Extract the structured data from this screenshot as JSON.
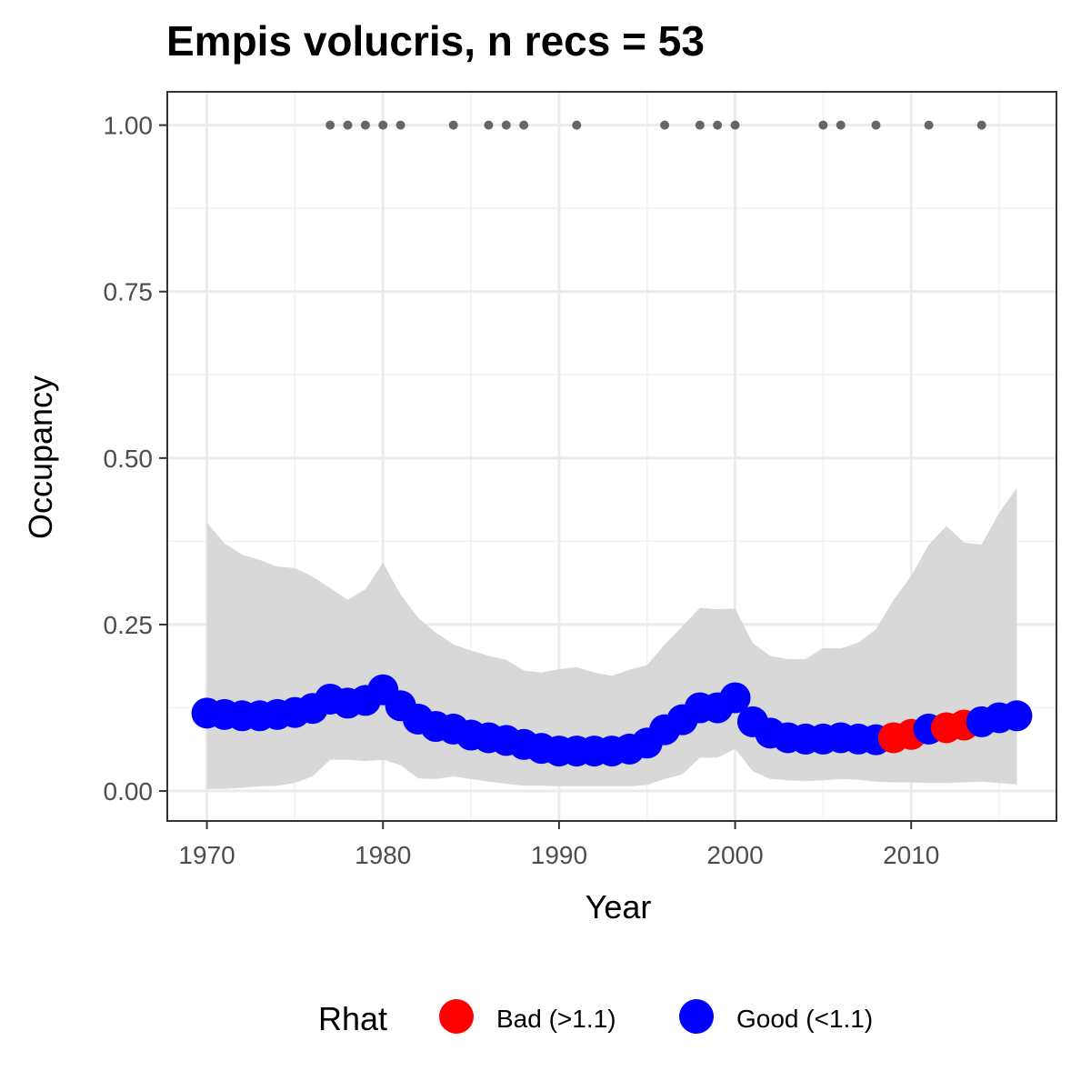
{
  "chart_data": {
    "type": "line",
    "title": "Empis volucris, n recs = 53",
    "xlabel": "Year",
    "ylabel": "Occupancy",
    "xlim": [
      1967.75,
      2018.25
    ],
    "ylim": [
      -0.045,
      1.05
    ],
    "x_ticks": [
      1970,
      1980,
      1990,
      2000,
      2010
    ],
    "y_ticks": [
      0,
      0.25,
      0.5,
      0.75,
      1.0
    ],
    "y_tick_labels": [
      "0.00",
      "0.25",
      "0.50",
      "0.75",
      "1.00"
    ],
    "grid": true,
    "years": [
      1970,
      1971,
      1972,
      1973,
      1974,
      1975,
      1976,
      1977,
      1978,
      1979,
      1980,
      1981,
      1982,
      1983,
      1984,
      1985,
      1986,
      1987,
      1988,
      1989,
      1990,
      1991,
      1992,
      1993,
      1994,
      1995,
      1996,
      1997,
      1998,
      1999,
      2000,
      2001,
      2002,
      2003,
      2004,
      2005,
      2006,
      2007,
      2008,
      2009,
      2010,
      2011,
      2012,
      2013,
      2014,
      2015,
      2016
    ],
    "occupancy": [
      0.117,
      0.115,
      0.113,
      0.113,
      0.115,
      0.118,
      0.124,
      0.138,
      0.132,
      0.136,
      0.152,
      0.128,
      0.108,
      0.097,
      0.093,
      0.084,
      0.08,
      0.076,
      0.07,
      0.064,
      0.06,
      0.06,
      0.06,
      0.06,
      0.063,
      0.072,
      0.092,
      0.107,
      0.125,
      0.125,
      0.14,
      0.104,
      0.087,
      0.08,
      0.078,
      0.078,
      0.08,
      0.078,
      0.077,
      0.08,
      0.085,
      0.093,
      0.095,
      0.099,
      0.104,
      0.11,
      0.113
    ],
    "lower": [
      0.003,
      0.003,
      0.005,
      0.007,
      0.008,
      0.012,
      0.022,
      0.047,
      0.047,
      0.045,
      0.047,
      0.039,
      0.019,
      0.018,
      0.022,
      0.018,
      0.014,
      0.011,
      0.008,
      0.008,
      0.007,
      0.007,
      0.007,
      0.007,
      0.007,
      0.009,
      0.018,
      0.025,
      0.05,
      0.05,
      0.063,
      0.03,
      0.018,
      0.016,
      0.015,
      0.016,
      0.018,
      0.017,
      0.014,
      0.013,
      0.013,
      0.012,
      0.012,
      0.013,
      0.014,
      0.012,
      0.01
    ],
    "upper": [
      0.403,
      0.372,
      0.355,
      0.347,
      0.337,
      0.335,
      0.322,
      0.305,
      0.287,
      0.303,
      0.343,
      0.295,
      0.26,
      0.238,
      0.22,
      0.211,
      0.203,
      0.197,
      0.181,
      0.178,
      0.183,
      0.186,
      0.178,
      0.173,
      0.182,
      0.189,
      0.22,
      0.247,
      0.275,
      0.273,
      0.274,
      0.222,
      0.203,
      0.198,
      0.198,
      0.215,
      0.214,
      0.223,
      0.243,
      0.287,
      0.323,
      0.37,
      0.398,
      0.373,
      0.37,
      0.418,
      0.455
    ],
    "rhat": [
      "Good",
      "Good",
      "Good",
      "Good",
      "Good",
      "Good",
      "Good",
      "Good",
      "Good",
      "Good",
      "Good",
      "Good",
      "Good",
      "Good",
      "Good",
      "Good",
      "Good",
      "Good",
      "Good",
      "Good",
      "Good",
      "Good",
      "Good",
      "Good",
      "Good",
      "Good",
      "Good",
      "Good",
      "Good",
      "Good",
      "Good",
      "Good",
      "Good",
      "Good",
      "Good",
      "Good",
      "Good",
      "Good",
      "Good",
      "Bad",
      "Bad",
      "Good",
      "Bad",
      "Bad",
      "Good",
      "Good",
      "Good"
    ],
    "record_years": [
      1977,
      1978,
      1979,
      1980,
      1981,
      1984,
      1986,
      1987,
      1988,
      1991,
      1996,
      1998,
      1999,
      2000,
      2005,
      2006,
      2008,
      2011,
      2014
    ],
    "record_y": 1.0,
    "legend": {
      "title": "Rhat",
      "position": "bottom",
      "items": [
        {
          "label": "Bad (>1.1)",
          "color": "#ff0000"
        },
        {
          "label": "Good (<1.1)",
          "color": "#0000ff"
        }
      ]
    },
    "colors": {
      "good": "#0000ff",
      "bad": "#ff0000",
      "ribbon": "#d6d6d6",
      "records": "#666666"
    }
  }
}
